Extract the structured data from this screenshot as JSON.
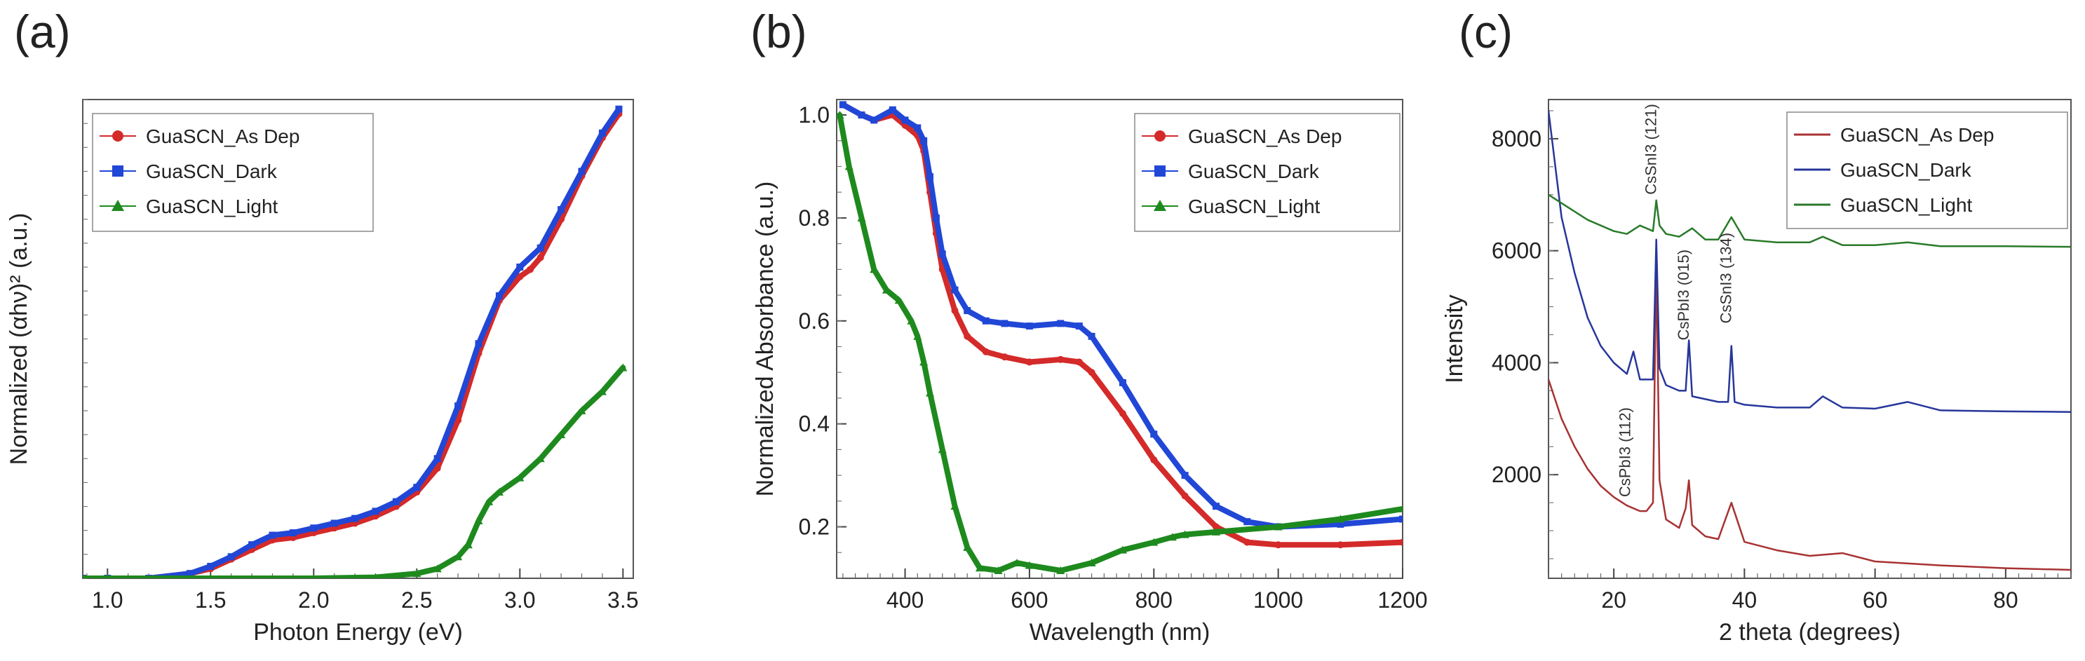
{
  "panel_labels": [
    "(a)",
    "(b)",
    "(c)"
  ],
  "colors": {
    "as_dep": "#d42a2a",
    "dark": "#2147d6",
    "light": "#1e8a1e",
    "as_dep_c": "#a83232",
    "dark_c": "#26369a",
    "light_c": "#2a7a2a"
  },
  "chart_data": [
    {
      "id": "a",
      "type": "line",
      "title": "",
      "xlabel": "Photon Energy (eV)",
      "ylabel": "Normalized (αhν)² (a.u.)",
      "xlim": [
        0.88,
        3.55
      ],
      "ylim": [
        0,
        1.0
      ],
      "xticks": [
        1.0,
        1.5,
        2.0,
        2.5,
        3.0,
        3.5
      ],
      "xtick_labels": [
        "1.0",
        "1.5",
        "2.0",
        "2.5",
        "3.0",
        "3.5"
      ],
      "yticks": [],
      "legend": "top-left",
      "series": [
        {
          "name": "GuaSCN_As Dep",
          "marker": "circle",
          "color": "#d42a2a",
          "x": [
            0.88,
            1.0,
            1.2,
            1.4,
            1.5,
            1.6,
            1.7,
            1.8,
            1.9,
            2.0,
            2.1,
            2.2,
            2.3,
            2.4,
            2.5,
            2.6,
            2.7,
            2.8,
            2.9,
            3.0,
            3.05,
            3.1,
            3.2,
            3.3,
            3.4,
            3.48
          ],
          "y": [
            0.0,
            0.0,
            0.0,
            0.01,
            0.02,
            0.04,
            0.06,
            0.08,
            0.085,
            0.095,
            0.105,
            0.115,
            0.13,
            0.15,
            0.18,
            0.23,
            0.33,
            0.47,
            0.58,
            0.63,
            0.645,
            0.67,
            0.75,
            0.84,
            0.92,
            0.97
          ]
        },
        {
          "name": "GuaSCN_Dark",
          "marker": "square",
          "color": "#2147d6",
          "x": [
            0.88,
            1.0,
            1.2,
            1.4,
            1.5,
            1.6,
            1.7,
            1.8,
            1.9,
            2.0,
            2.1,
            2.2,
            2.3,
            2.4,
            2.5,
            2.6,
            2.7,
            2.8,
            2.9,
            3.0,
            3.1,
            3.2,
            3.3,
            3.4,
            3.48
          ],
          "y": [
            0.0,
            0.0,
            0.0,
            0.01,
            0.025,
            0.045,
            0.07,
            0.09,
            0.095,
            0.105,
            0.115,
            0.125,
            0.14,
            0.16,
            0.19,
            0.25,
            0.36,
            0.49,
            0.59,
            0.65,
            0.69,
            0.77,
            0.85,
            0.93,
            0.98
          ]
        },
        {
          "name": "GuaSCN_Light",
          "marker": "triangle",
          "color": "#1e8a1e",
          "x": [
            0.88,
            1.0,
            1.5,
            2.0,
            2.3,
            2.5,
            2.6,
            2.7,
            2.75,
            2.8,
            2.85,
            2.9,
            3.0,
            3.1,
            3.2,
            3.3,
            3.4,
            3.5
          ],
          "y": [
            0.0,
            0.0,
            0.0,
            0.0,
            0.002,
            0.01,
            0.02,
            0.045,
            0.07,
            0.12,
            0.16,
            0.18,
            0.21,
            0.25,
            0.3,
            0.35,
            0.39,
            0.44
          ]
        }
      ]
    },
    {
      "id": "b",
      "type": "line",
      "title": "",
      "xlabel": "Wavelength (nm)",
      "ylabel": "Normalized Absorbance (a.u.)",
      "xlim": [
        290,
        1200
      ],
      "ylim": [
        0.1,
        1.03
      ],
      "xticks": [
        400,
        600,
        800,
        1000,
        1200
      ],
      "xtick_labels": [
        "400",
        "600",
        "800",
        "1000",
        "1200"
      ],
      "yticks": [
        0.2,
        0.4,
        0.6,
        0.8,
        1.0
      ],
      "ytick_labels": [
        "0.2",
        "0.4",
        "0.6",
        "0.8",
        "1.0"
      ],
      "legend": "top-right",
      "series": [
        {
          "name": "GuaSCN_As Dep",
          "marker": "circle",
          "color": "#d42a2a",
          "x": [
            300,
            330,
            350,
            380,
            400,
            420,
            430,
            440,
            450,
            460,
            480,
            500,
            530,
            560,
            600,
            650,
            680,
            700,
            750,
            800,
            850,
            900,
            950,
            1000,
            1100,
            1200
          ],
          "y": [
            1.02,
            1.0,
            0.99,
            1.0,
            0.98,
            0.96,
            0.93,
            0.85,
            0.77,
            0.7,
            0.62,
            0.57,
            0.54,
            0.53,
            0.52,
            0.525,
            0.52,
            0.5,
            0.42,
            0.33,
            0.26,
            0.2,
            0.17,
            0.165,
            0.165,
            0.17
          ]
        },
        {
          "name": "GuaSCN_Dark",
          "marker": "square",
          "color": "#2147d6",
          "x": [
            300,
            330,
            350,
            380,
            400,
            420,
            430,
            440,
            450,
            460,
            480,
            500,
            530,
            560,
            600,
            650,
            680,
            700,
            750,
            800,
            850,
            900,
            950,
            1000,
            1100,
            1200
          ],
          "y": [
            1.02,
            1.0,
            0.99,
            1.01,
            0.99,
            0.975,
            0.95,
            0.88,
            0.8,
            0.73,
            0.66,
            0.62,
            0.6,
            0.595,
            0.59,
            0.595,
            0.59,
            0.57,
            0.48,
            0.38,
            0.3,
            0.24,
            0.21,
            0.2,
            0.205,
            0.215
          ]
        },
        {
          "name": "GuaSCN_Light",
          "marker": "triangle",
          "color": "#1e8a1e",
          "x": [
            295,
            310,
            330,
            350,
            370,
            390,
            410,
            420,
            430,
            440,
            460,
            480,
            500,
            520,
            550,
            580,
            600,
            650,
            700,
            750,
            800,
            830,
            850,
            900,
            1000,
            1100,
            1200
          ],
          "y": [
            1.0,
            0.9,
            0.8,
            0.7,
            0.66,
            0.64,
            0.6,
            0.57,
            0.52,
            0.46,
            0.35,
            0.24,
            0.16,
            0.12,
            0.115,
            0.13,
            0.125,
            0.115,
            0.13,
            0.155,
            0.17,
            0.18,
            0.185,
            0.19,
            0.2,
            0.215,
            0.235
          ]
        }
      ]
    },
    {
      "id": "c",
      "type": "line",
      "title": "",
      "xlabel": "2 theta (degrees)",
      "ylabel": "Intensity",
      "xlim": [
        10,
        90
      ],
      "ylim": [
        150,
        8700
      ],
      "xticks": [
        20,
        40,
        60,
        80
      ],
      "xtick_labels": [
        "20",
        "40",
        "60",
        "80"
      ],
      "yticks": [
        2000,
        4000,
        6000,
        8000
      ],
      "ytick_labels": [
        "2000",
        "4000",
        "6000",
        "8000"
      ],
      "legend": "top-right",
      "annotations": [
        {
          "text": "CsSnI3 (121)",
          "x": 26.5,
          "y": 7000
        },
        {
          "text": "CsPbI3 (015)",
          "x": 31.5,
          "y": 4400
        },
        {
          "text": "CsSnI3 (134)",
          "x": 38.0,
          "y": 4700
        },
        {
          "text": "CsPbI3 (112)",
          "x": 22.5,
          "y": 1600
        }
      ],
      "series": [
        {
          "name": "GuaSCN_As Dep",
          "color": "#a83232",
          "x": [
            10,
            12,
            14,
            16,
            18,
            20,
            22,
            24,
            25,
            26,
            26.5,
            27,
            28,
            30,
            31,
            31.5,
            32,
            34,
            36,
            38,
            40,
            45,
            50,
            55,
            60,
            70,
            80,
            90
          ],
          "y": [
            3700,
            3000,
            2500,
            2100,
            1800,
            1600,
            1450,
            1350,
            1350,
            1500,
            5800,
            1900,
            1200,
            1050,
            1400,
            1900,
            1100,
            900,
            850,
            1500,
            800,
            650,
            550,
            600,
            450,
            380,
            330,
            300
          ]
        },
        {
          "name": "GuaSCN_Dark",
          "color": "#26369a",
          "x": [
            10,
            12,
            14,
            16,
            18,
            20,
            22,
            23,
            24,
            26,
            26.5,
            27,
            28,
            30,
            31,
            31.5,
            32,
            34,
            36,
            37.5,
            38,
            38.5,
            40,
            45,
            50,
            52,
            55,
            60,
            65,
            70,
            80,
            90
          ],
          "y": [
            8500,
            6600,
            5600,
            4800,
            4300,
            4000,
            3800,
            4200,
            3700,
            3700,
            6200,
            3900,
            3600,
            3500,
            3500,
            4400,
            3400,
            3350,
            3300,
            3300,
            4300,
            3300,
            3250,
            3200,
            3200,
            3400,
            3200,
            3180,
            3300,
            3150,
            3130,
            3120
          ]
        },
        {
          "name": "GuaSCN_Light",
          "color": "#2a7a2a",
          "x": [
            10,
            12,
            14,
            16,
            18,
            20,
            22,
            24,
            26,
            26.5,
            27,
            28,
            30,
            32,
            34,
            36,
            38,
            40,
            45,
            50,
            52,
            55,
            60,
            65,
            70,
            80,
            90
          ],
          "y": [
            7000,
            6850,
            6700,
            6550,
            6450,
            6350,
            6300,
            6450,
            6350,
            6900,
            6450,
            6300,
            6250,
            6400,
            6200,
            6200,
            6600,
            6200,
            6150,
            6150,
            6250,
            6100,
            6100,
            6150,
            6080,
            6080,
            6070
          ]
        }
      ]
    }
  ]
}
